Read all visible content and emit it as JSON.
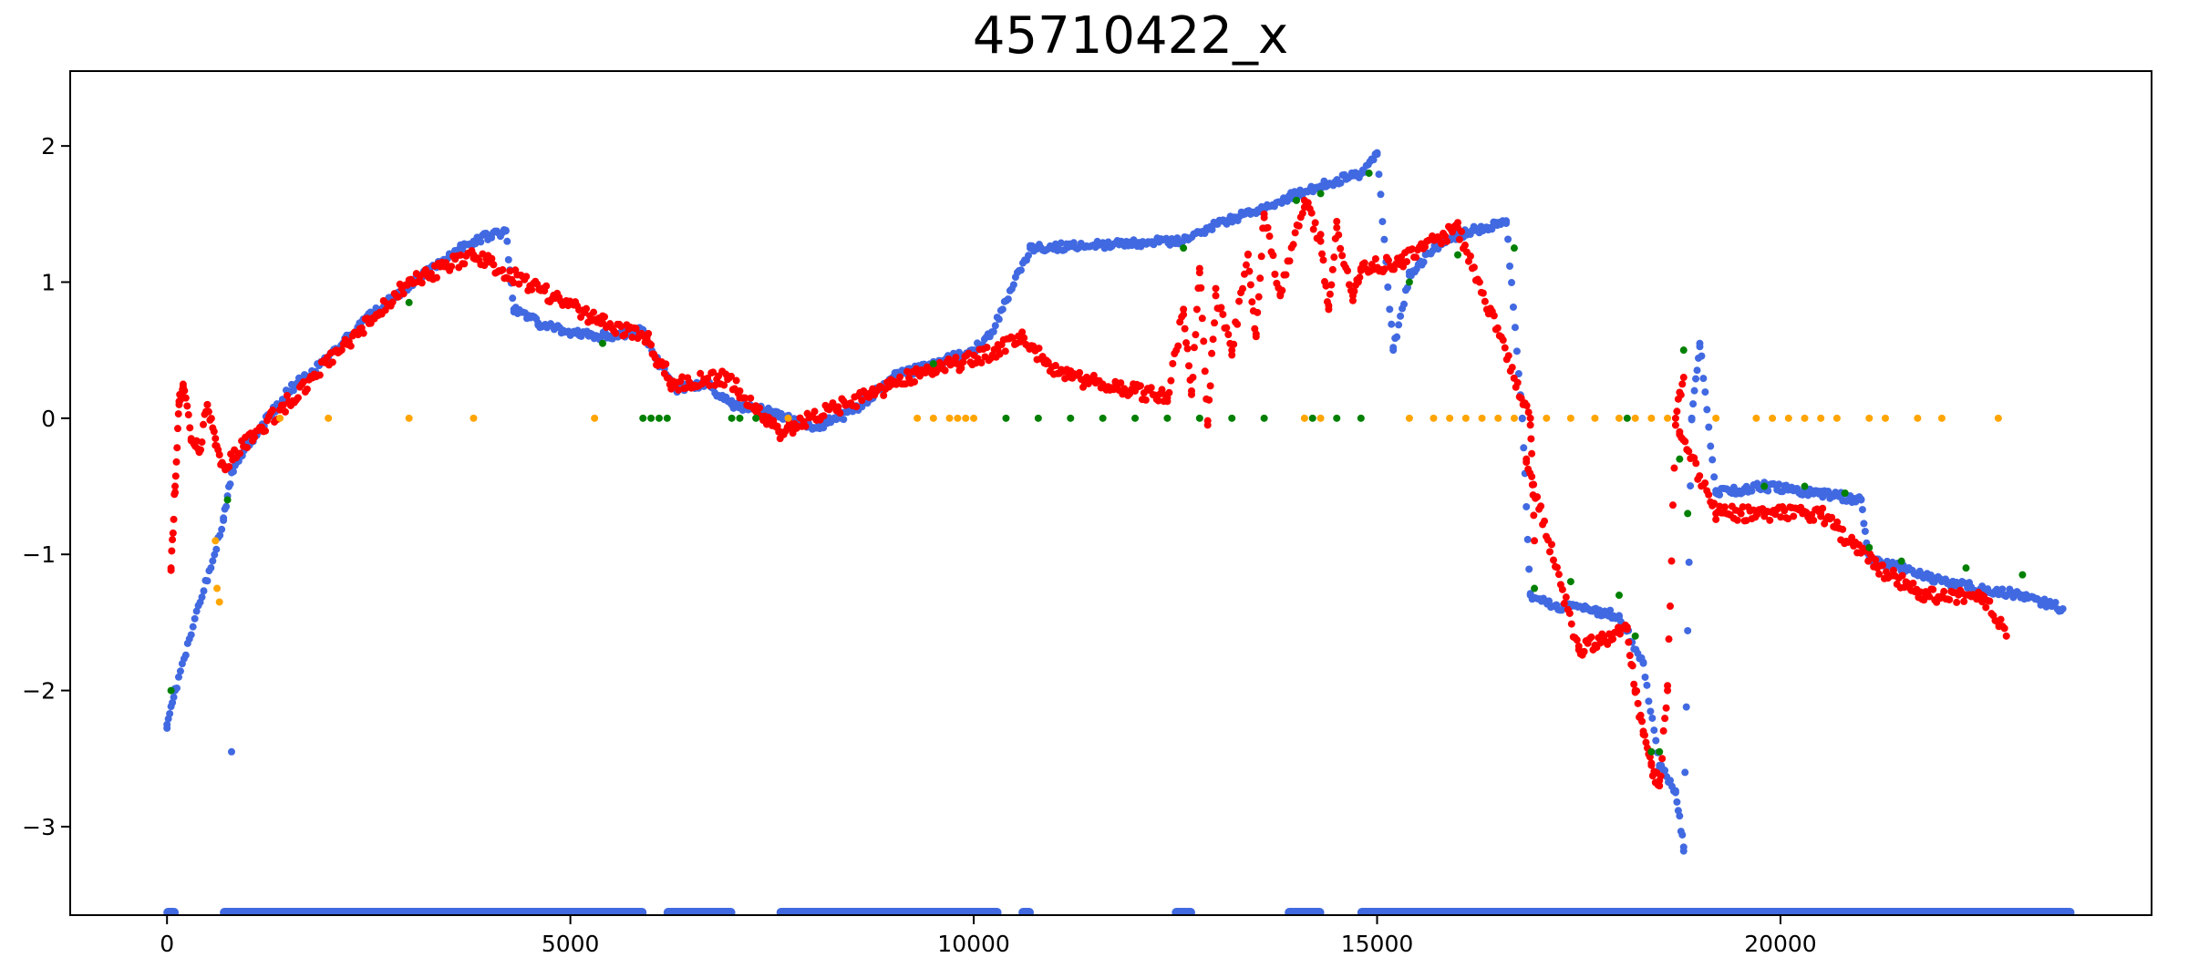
{
  "chart_data": {
    "type": "scatter",
    "title": "45710422_x",
    "xlabel": "",
    "ylabel": "",
    "xlim": [
      -1200,
      24600
    ],
    "ylim": [
      -3.65,
      2.55
    ],
    "x_ticks": [
      0,
      5000,
      10000,
      15000,
      20000
    ],
    "x_tick_labels": [
      "0",
      "5000",
      "10000",
      "15000",
      "20000"
    ],
    "y_ticks": [
      2,
      1,
      0,
      -1,
      -2,
      -3
    ],
    "y_tick_labels": [
      "2",
      "1",
      "0",
      "−1",
      "−2",
      "−3"
    ],
    "grid": false,
    "legend": "none",
    "series": [
      {
        "color": "#4169e1",
        "points": [
          [
            0,
            -2.25
          ],
          [
            100,
            -2.0
          ],
          [
            700,
            -0.75
          ],
          [
            800,
            -0.4
          ],
          [
            1000,
            -0.2
          ],
          [
            1500,
            0.2
          ],
          [
            2000,
            0.45
          ],
          [
            2500,
            0.75
          ],
          [
            3000,
            0.98
          ],
          [
            3500,
            1.2
          ],
          [
            3800,
            1.3
          ],
          [
            4200,
            1.38
          ],
          [
            4300,
            0.8
          ],
          [
            4600,
            0.7
          ],
          [
            5000,
            0.62
          ],
          [
            5500,
            0.6
          ],
          [
            5900,
            0.65
          ],
          [
            6100,
            0.4
          ],
          [
            6300,
            0.22
          ],
          [
            6700,
            0.25
          ],
          [
            7000,
            0.1
          ],
          [
            7500,
            0.05
          ],
          [
            8000,
            -0.08
          ],
          [
            8500,
            0.05
          ],
          [
            9000,
            0.3
          ],
          [
            9500,
            0.4
          ],
          [
            10000,
            0.5
          ],
          [
            10200,
            0.6
          ],
          [
            10700,
            1.25
          ],
          [
            12500,
            1.3
          ],
          [
            14000,
            1.65
          ],
          [
            14800,
            1.8
          ],
          [
            15000,
            1.95
          ],
          [
            15200,
            0.5
          ],
          [
            15400,
            1.05
          ],
          [
            15800,
            1.3
          ],
          [
            16200,
            1.38
          ],
          [
            16600,
            1.45
          ],
          [
            16800,
            0.0
          ],
          [
            16900,
            -1.3
          ],
          [
            17200,
            -1.38
          ],
          [
            17600,
            -1.4
          ],
          [
            18000,
            -1.45
          ],
          [
            18300,
            -1.8
          ],
          [
            18500,
            -2.55
          ],
          [
            18700,
            -2.75
          ],
          [
            18800,
            -3.15
          ],
          [
            18900,
            0.0
          ],
          [
            19000,
            0.55
          ],
          [
            19200,
            -0.55
          ],
          [
            19800,
            -0.5
          ],
          [
            20500,
            -0.55
          ],
          [
            21000,
            -0.6
          ],
          [
            21100,
            -1.05
          ],
          [
            21500,
            -1.1
          ],
          [
            22000,
            -1.2
          ],
          [
            22500,
            -1.25
          ],
          [
            23000,
            -1.3
          ],
          [
            23500,
            -1.4
          ],
          [
            800,
            -2.45
          ]
        ],
        "bands": [
          [
            0,
            100,
            -3.63
          ],
          [
            700,
            5900,
            -3.63
          ],
          [
            6200,
            7000,
            -3.63
          ],
          [
            7600,
            10300,
            -3.63
          ],
          [
            10600,
            10700,
            -3.63
          ],
          [
            12500,
            12700,
            -3.63
          ],
          [
            13900,
            14300,
            -3.63
          ],
          [
            14800,
            23600,
            -3.63
          ]
        ]
      },
      {
        "color": "#ff0000",
        "points": [
          [
            50,
            -1.1
          ],
          [
            100,
            -0.5
          ],
          [
            150,
            0.1
          ],
          [
            200,
            0.25
          ],
          [
            300,
            -0.15
          ],
          [
            400,
            -0.25
          ],
          [
            500,
            0.1
          ],
          [
            600,
            -0.2
          ],
          [
            700,
            -0.35
          ],
          [
            3000,
            1.0
          ],
          [
            3800,
            1.2
          ],
          [
            5400,
            0.7
          ],
          [
            5950,
            0.6
          ],
          [
            6050,
            0.45
          ],
          [
            6150,
            0.4
          ],
          [
            6250,
            0.25
          ],
          [
            6950,
            0.3
          ],
          [
            7100,
            0.2
          ],
          [
            7300,
            0.05
          ],
          [
            7500,
            -0.05
          ],
          [
            7600,
            -0.1
          ],
          [
            9400,
            0.35
          ],
          [
            9800,
            0.4
          ],
          [
            10300,
            0.5
          ],
          [
            10600,
            0.6
          ],
          [
            10900,
            0.4
          ],
          [
            11200,
            0.3
          ],
          [
            11600,
            0.25
          ],
          [
            12000,
            0.2
          ],
          [
            12400,
            0.15
          ],
          [
            12600,
            0.8
          ],
          [
            12700,
            0.2
          ],
          [
            12800,
            1.1
          ],
          [
            12900,
            -0.05
          ],
          [
            13000,
            0.9
          ],
          [
            13200,
            0.5
          ],
          [
            13400,
            1.2
          ],
          [
            13500,
            0.6
          ],
          [
            13600,
            1.5
          ],
          [
            13800,
            0.9
          ],
          [
            14100,
            1.6
          ],
          [
            14300,
            1.3
          ],
          [
            14400,
            0.8
          ],
          [
            14500,
            1.4
          ],
          [
            14700,
            0.9
          ],
          [
            14800,
            1.1
          ],
          [
            15300,
            1.15
          ],
          [
            16000,
            1.4
          ],
          [
            16900,
            0.0
          ],
          [
            16950,
            -0.9
          ],
          [
            16850,
            -0.3
          ],
          [
            17500,
            -1.7
          ],
          [
            18100,
            -1.55
          ],
          [
            18200,
            -2.0
          ],
          [
            18300,
            -2.3
          ],
          [
            18400,
            -2.55
          ],
          [
            18500,
            -2.7
          ],
          [
            18600,
            -2.0
          ],
          [
            18700,
            0.0
          ],
          [
            18800,
            0.3
          ],
          [
            18750,
            -0.1
          ],
          [
            19200,
            -0.7
          ],
          [
            19800,
            -0.7
          ],
          [
            20500,
            -0.7
          ],
          [
            21200,
            -1.1
          ],
          [
            21800,
            -1.3
          ],
          [
            22500,
            -1.3
          ],
          [
            22800,
            -1.6
          ]
        ]
      },
      {
        "color": "#008000",
        "points": [
          [
            50,
            -2.0
          ],
          [
            750,
            -0.6
          ],
          [
            3000,
            0.85
          ],
          [
            5400,
            0.55
          ],
          [
            5900,
            0.0
          ],
          [
            6000,
            0.0
          ],
          [
            6100,
            0.0
          ],
          [
            6200,
            0.0
          ],
          [
            7000,
            0.0
          ],
          [
            7100,
            0.0
          ],
          [
            7300,
            0.0
          ],
          [
            9500,
            0.4
          ],
          [
            10400,
            0.0
          ],
          [
            10800,
            0.0
          ],
          [
            11200,
            0.0
          ],
          [
            11600,
            0.0
          ],
          [
            12000,
            0.0
          ],
          [
            12400,
            0.0
          ],
          [
            12800,
            0.0
          ],
          [
            13200,
            0.0
          ],
          [
            13600,
            0.0
          ],
          [
            14200,
            0.0
          ],
          [
            14500,
            0.0
          ],
          [
            14800,
            0.0
          ],
          [
            12600,
            1.25
          ],
          [
            14000,
            1.6
          ],
          [
            14300,
            1.65
          ],
          [
            14900,
            1.8
          ],
          [
            15400,
            1.0
          ],
          [
            16000,
            1.2
          ],
          [
            16700,
            1.25
          ],
          [
            16950,
            -1.25
          ],
          [
            17400,
            -1.2
          ],
          [
            18000,
            -1.3
          ],
          [
            18100,
            0.0
          ],
          [
            18200,
            -1.6
          ],
          [
            18400,
            -2.45
          ],
          [
            18500,
            -2.45
          ],
          [
            18800,
            0.5
          ],
          [
            18850,
            -0.7
          ],
          [
            18750,
            -0.3
          ],
          [
            19800,
            -0.5
          ],
          [
            20300,
            -0.5
          ],
          [
            20800,
            -0.55
          ],
          [
            21100,
            -0.95
          ],
          [
            21500,
            -1.05
          ],
          [
            22300,
            -1.1
          ],
          [
            23000,
            -1.15
          ]
        ]
      },
      {
        "color": "#ffa500",
        "points": [
          [
            600,
            -0.9
          ],
          [
            620,
            -1.25
          ],
          [
            650,
            -1.35
          ],
          [
            1400,
            0.0
          ],
          [
            2000,
            0.0
          ],
          [
            3000,
            0.0
          ],
          [
            3800,
            0.0
          ],
          [
            5300,
            0.0
          ],
          [
            7700,
            0.0
          ],
          [
            9300,
            0.0
          ],
          [
            9500,
            0.0
          ],
          [
            9700,
            0.0
          ],
          [
            9800,
            0.0
          ],
          [
            9900,
            0.0
          ],
          [
            10000,
            0.0
          ],
          [
            14100,
            0.0
          ],
          [
            14300,
            0.0
          ],
          [
            15400,
            0.0
          ],
          [
            15700,
            0.0
          ],
          [
            15900,
            0.0
          ],
          [
            16100,
            0.0
          ],
          [
            16300,
            0.0
          ],
          [
            16500,
            0.0
          ],
          [
            16700,
            0.0
          ],
          [
            17100,
            0.0
          ],
          [
            17400,
            0.0
          ],
          [
            17700,
            0.0
          ],
          [
            18000,
            0.0
          ],
          [
            18200,
            0.0
          ],
          [
            18400,
            0.0
          ],
          [
            18600,
            0.0
          ],
          [
            19200,
            0.0
          ],
          [
            19700,
            0.0
          ],
          [
            19900,
            0.0
          ],
          [
            20100,
            0.0
          ],
          [
            20300,
            0.0
          ],
          [
            20500,
            0.0
          ],
          [
            20700,
            0.0
          ],
          [
            21100,
            0.0
          ],
          [
            21300,
            0.0
          ],
          [
            21700,
            0.0
          ],
          [
            22000,
            0.0
          ],
          [
            22700,
            0.0
          ]
        ]
      }
    ]
  }
}
